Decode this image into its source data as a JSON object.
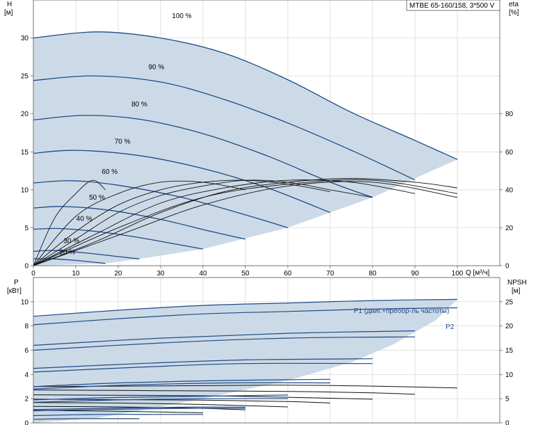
{
  "model_label": "MTBE 65-160/158, 3*500 V",
  "chart_data": [
    {
      "type": "line",
      "panel": "top",
      "left_axis": {
        "title": "H",
        "unit": "[м]",
        "ticks": [
          0,
          5,
          10,
          15,
          20,
          25,
          30
        ],
        "ylim": [
          0,
          35
        ]
      },
      "right_axis": {
        "title": "eta",
        "unit": "[%]",
        "ticks": [
          0,
          20,
          40,
          60,
          80
        ],
        "ylim": [
          0,
          140
        ]
      },
      "x_axis": {
        "ticks": [
          0,
          10,
          20,
          30,
          40,
          50,
          60,
          70,
          80,
          90,
          100
        ],
        "label": "Q [м³/ч]",
        "xlim": [
          0,
          110
        ]
      },
      "series": [
        {
          "name": "100 %",
          "x": [
            0,
            15,
            30,
            45,
            60,
            75,
            90,
            100
          ],
          "y": [
            30.0,
            30.8,
            30.0,
            28.0,
            24.5,
            20.2,
            16.5,
            14.0
          ]
        },
        {
          "name": "90 %",
          "x": [
            0,
            14,
            30,
            45,
            60,
            75,
            90
          ],
          "y": [
            24.4,
            25.0,
            24.2,
            21.9,
            18.8,
            15.2,
            11.3
          ]
        },
        {
          "name": "80 %",
          "x": [
            0,
            12,
            25,
            40,
            55,
            70,
            80
          ],
          "y": [
            19.2,
            19.8,
            19.3,
            17.4,
            14.5,
            11.0,
            9.0
          ]
        },
        {
          "name": "70 %",
          "x": [
            0,
            10,
            25,
            40,
            55,
            70
          ],
          "y": [
            14.8,
            15.2,
            14.5,
            12.8,
            10.3,
            7.0
          ]
        },
        {
          "name": "60 %",
          "x": [
            0,
            9,
            20,
            35,
            50,
            60
          ],
          "y": [
            10.9,
            11.2,
            10.6,
            9.0,
            6.7,
            5.0
          ]
        },
        {
          "name": "50 %",
          "x": [
            0,
            7,
            18,
            30,
            42,
            50
          ],
          "y": [
            7.6,
            7.8,
            7.3,
            6.1,
            4.5,
            3.5
          ]
        },
        {
          "name": "40 %",
          "x": [
            0,
            6,
            15,
            25,
            35,
            40
          ],
          "y": [
            4.8,
            4.9,
            4.5,
            3.7,
            2.7,
            2.2
          ]
        },
        {
          "name": "30 %",
          "x": [
            0,
            5,
            12,
            20,
            25
          ],
          "y": [
            1.9,
            2.0,
            1.7,
            1.2,
            0.9
          ]
        },
        {
          "name": "20 %",
          "x": [
            0,
            4,
            10,
            17
          ],
          "y": [
            0.9,
            0.9,
            0.7,
            0.3
          ]
        }
      ],
      "envelope": {
        "x": [
          0,
          0,
          15,
          30,
          45,
          60,
          75,
          90,
          100,
          80,
          60,
          40,
          25,
          17,
          0
        ],
        "y": [
          0,
          30.0,
          30.8,
          30.0,
          28.0,
          24.5,
          20.2,
          16.5,
          14.0,
          9.0,
          5.0,
          2.2,
          0.9,
          0.3,
          0
        ]
      },
      "efficiency_curves": [
        {
          "x": [
            0,
            5,
            10,
            14,
            17
          ],
          "y": [
            0,
            25,
            38,
            45,
            40
          ]
        },
        {
          "x": [
            0,
            10,
            20,
            30,
            40,
            50
          ],
          "y": [
            0,
            26,
            38,
            44,
            44,
            40
          ]
        },
        {
          "x": [
            0,
            10,
            20,
            30,
            40,
            50,
            60,
            70
          ],
          "y": [
            0,
            18,
            32,
            40,
            44,
            45,
            43,
            39
          ]
        },
        {
          "x": [
            0,
            10,
            20,
            30,
            40,
            50,
            60,
            70,
            80
          ],
          "y": [
            0,
            14,
            28,
            37,
            42,
            45,
            44,
            40,
            36
          ]
        },
        {
          "x": [
            0,
            15,
            30,
            45,
            60,
            75,
            90
          ],
          "y": [
            0,
            17,
            33,
            41,
            45,
            44,
            38
          ]
        },
        {
          "x": [
            0,
            15,
            30,
            45,
            60,
            75,
            90,
            100
          ],
          "y": [
            0,
            13,
            28,
            39,
            44,
            46,
            44,
            41
          ]
        },
        {
          "x": [
            0,
            20,
            40,
            60,
            80,
            100
          ],
          "y": [
            0,
            20,
            36,
            43,
            45,
            38
          ]
        },
        {
          "x": [
            0,
            20,
            40,
            60,
            80,
            100
          ],
          "y": [
            0,
            16,
            32,
            42,
            44,
            36
          ]
        }
      ]
    },
    {
      "type": "line",
      "panel": "bottom",
      "left_axis": {
        "title": "P",
        "unit": "[кВт]",
        "ticks": [
          0,
          2,
          4,
          6,
          8,
          10
        ],
        "ylim": [
          0,
          12
        ]
      },
      "right_axis": {
        "title": "NPSH",
        "unit": "[м]",
        "ticks": [
          0,
          5,
          10,
          15,
          20,
          25
        ],
        "ylim": [
          0,
          30
        ]
      },
      "x_axis": {
        "xlim": [
          0,
          110
        ]
      },
      "series": [
        {
          "name": "P1 (двиг.+преобр-ль частоты)",
          "x": [
            0,
            20,
            40,
            60,
            80,
            100
          ],
          "y": [
            8.8,
            9.3,
            9.7,
            9.9,
            10.1,
            10.2
          ]
        },
        {
          "name": "P2",
          "x": [
            0,
            20,
            40,
            60,
            80,
            100
          ],
          "y": [
            8.1,
            8.6,
            9.0,
            9.2,
            9.4,
            9.5
          ]
        },
        {
          "name": "",
          "x": [
            0,
            30,
            60,
            90
          ],
          "y": [
            6.4,
            7.0,
            7.4,
            7.6
          ]
        },
        {
          "name": "",
          "x": [
            0,
            30,
            60,
            90
          ],
          "y": [
            6.0,
            6.6,
            7.0,
            7.1
          ]
        },
        {
          "name": "",
          "x": [
            0,
            25,
            50,
            80
          ],
          "y": [
            4.5,
            4.9,
            5.2,
            5.3
          ]
        },
        {
          "name": "",
          "x": [
            0,
            25,
            50,
            80
          ],
          "y": [
            4.2,
            4.6,
            4.9,
            4.9
          ]
        },
        {
          "name": "",
          "x": [
            0,
            20,
            45,
            70
          ],
          "y": [
            3.0,
            3.3,
            3.5,
            3.6
          ]
        },
        {
          "name": "",
          "x": [
            0,
            20,
            45,
            70
          ],
          "y": [
            2.8,
            3.1,
            3.3,
            3.3
          ]
        },
        {
          "name": "",
          "x": [
            0,
            20,
            40,
            60
          ],
          "y": [
            1.9,
            2.1,
            2.2,
            2.3
          ]
        },
        {
          "name": "",
          "x": [
            0,
            20,
            40,
            60
          ],
          "y": [
            1.7,
            1.9,
            2.0,
            2.0
          ]
        },
        {
          "name": "",
          "x": [
            0,
            15,
            35,
            50
          ],
          "y": [
            1.1,
            1.2,
            1.3,
            1.3
          ]
        },
        {
          "name": "",
          "x": [
            0,
            15,
            35,
            50
          ],
          "y": [
            1.0,
            1.1,
            1.2,
            1.2
          ]
        },
        {
          "name": "",
          "x": [
            0,
            15,
            30,
            40
          ],
          "y": [
            0.6,
            0.7,
            0.7,
            0.7
          ]
        },
        {
          "name": "",
          "x": [
            0,
            10,
            20,
            25
          ],
          "y": [
            0.3,
            0.35,
            0.35,
            0.35
          ]
        }
      ],
      "envelope": {
        "x": [
          0,
          0,
          20,
          40,
          60,
          80,
          100,
          95,
          85,
          75,
          60,
          40,
          25,
          15,
          0
        ],
        "y": [
          0,
          8.8,
          9.3,
          9.7,
          9.9,
          10.1,
          10.2,
          8.5,
          6.5,
          5.0,
          3.5,
          2.0,
          1.0,
          0.4,
          0
        ]
      },
      "npsh_curves": [
        {
          "x": [
            0,
            20,
            40,
            60,
            80,
            100
          ],
          "y": [
            7.5,
            7.6,
            7.7,
            7.8,
            7.6,
            7.2
          ]
        },
        {
          "x": [
            0,
            20,
            40,
            60,
            80,
            90
          ],
          "y": [
            6.8,
            6.7,
            6.6,
            6.5,
            6.2,
            5.9
          ]
        },
        {
          "x": [
            0,
            20,
            40,
            60,
            80
          ],
          "y": [
            5.8,
            5.7,
            5.6,
            5.3,
            4.9
          ]
        },
        {
          "x": [
            0,
            20,
            40,
            60,
            70
          ],
          "y": [
            4.9,
            4.8,
            4.7,
            4.4,
            4.1
          ]
        },
        {
          "x": [
            0,
            20,
            40,
            60
          ],
          "y": [
            4.2,
            4.1,
            3.8,
            3.3
          ]
        },
        {
          "x": [
            0,
            20,
            40,
            50
          ],
          "y": [
            3.4,
            3.3,
            3.0,
            2.7
          ]
        },
        {
          "x": [
            0,
            20,
            40
          ],
          "y": [
            2.6,
            2.4,
            2.1
          ]
        }
      ]
    }
  ]
}
